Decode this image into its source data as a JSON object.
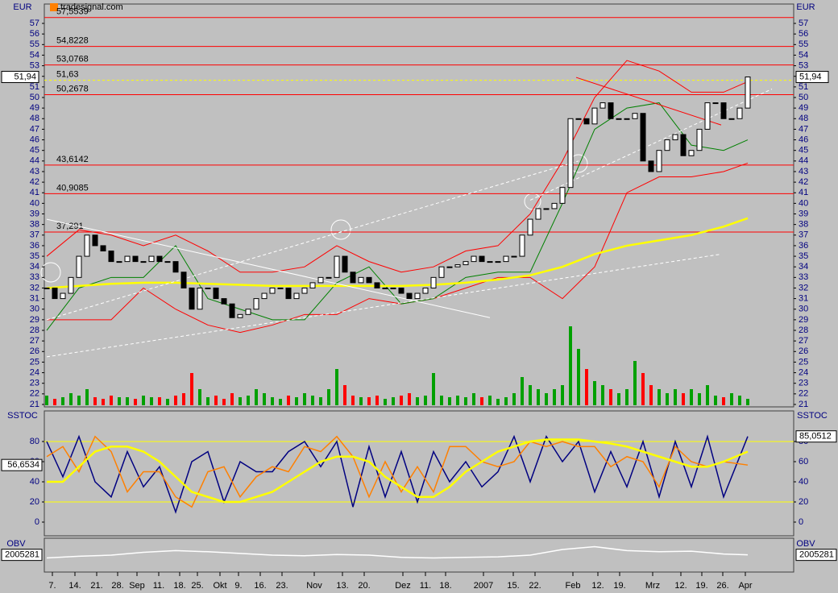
{
  "chart_data": [
    {
      "type": "candlestick",
      "title": "EUR",
      "source": "tradesignal.com",
      "xlim": [
        -0.3,
        92.7
      ],
      "ylim": [
        20.77,
        58.83
      ],
      "yticks": [
        21,
        22,
        23,
        24,
        25,
        26,
        27,
        28,
        29,
        30,
        31,
        32,
        33,
        34,
        35,
        36,
        37,
        38,
        39,
        40,
        41,
        42,
        43,
        44,
        45,
        46,
        47,
        48,
        49,
        50,
        51,
        52,
        53,
        54,
        55,
        56,
        57
      ],
      "xticks": [
        {
          "value": 0.7,
          "label": "7."
        },
        {
          "value": 3.5,
          "label": "14."
        },
        {
          "value": 6.2,
          "label": "21."
        },
        {
          "value": 8.8,
          "label": "28."
        },
        {
          "value": 11.2,
          "label": "Sep"
        },
        {
          "value": 13.9,
          "label": "11."
        },
        {
          "value": 16.5,
          "label": "18."
        },
        {
          "value": 18.7,
          "label": "25."
        },
        {
          "value": 21.5,
          "label": "Okt"
        },
        {
          "value": 23.8,
          "label": "9."
        },
        {
          "value": 26.5,
          "label": "16."
        },
        {
          "value": 29.2,
          "label": "23."
        },
        {
          "value": 33.2,
          "label": "Nov"
        },
        {
          "value": 36.7,
          "label": "13."
        },
        {
          "value": 39.4,
          "label": "20."
        },
        {
          "value": 44.2,
          "label": "Dez"
        },
        {
          "value": 47,
          "label": "11."
        },
        {
          "value": 49.5,
          "label": "18."
        },
        {
          "value": 54.2,
          "label": "2007"
        },
        {
          "value": 57.9,
          "label": "15."
        },
        {
          "value": 60.6,
          "label": "22."
        },
        {
          "value": 65.3,
          "label": "Feb"
        },
        {
          "value": 68.4,
          "label": "12."
        },
        {
          "value": 71.1,
          "label": "19."
        },
        {
          "value": 75.2,
          "label": "Mrz"
        },
        {
          "value": 78.7,
          "label": "12."
        },
        {
          "value": 81.3,
          "label": "19."
        },
        {
          "value": 83.9,
          "label": "26."
        },
        {
          "value": 86.7,
          "label": "Apr"
        }
      ],
      "closes": [
        32,
        31,
        31.5,
        33,
        35,
        37,
        36,
        35.5,
        34.5,
        34.5,
        35,
        34.5,
        34.5,
        35,
        34.5,
        34.5,
        33.5,
        32,
        30,
        32,
        32,
        31,
        30.5,
        29.2,
        29.5,
        30,
        31,
        31.5,
        32,
        32,
        31,
        31.5,
        32,
        32.5,
        33,
        33,
        35,
        33.5,
        32.5,
        33,
        32.5,
        32,
        32,
        32,
        31.5,
        31,
        31.5,
        32,
        33,
        34,
        34,
        34.2,
        34.5,
        35,
        34.5,
        34.5,
        34.5,
        35,
        35,
        37,
        38.5,
        39.5,
        39.5,
        40,
        41.5,
        48,
        48,
        47.5,
        49,
        49.5,
        48,
        48,
        48,
        48.5,
        44,
        43,
        45,
        46,
        46.5,
        44.5,
        45,
        47,
        49.5,
        49.5,
        48,
        48,
        49,
        51.94
      ],
      "volume": [
        12,
        8,
        10,
        15,
        12,
        20,
        10,
        8,
        12,
        10,
        10,
        8,
        12,
        10,
        10,
        8,
        12,
        15,
        40,
        20,
        10,
        12,
        8,
        15,
        10,
        12,
        20,
        15,
        10,
        8,
        12,
        10,
        15,
        12,
        10,
        20,
        45,
        25,
        12,
        10,
        10,
        12,
        8,
        10,
        12,
        15,
        10,
        12,
        40,
        12,
        10,
        12,
        10,
        15,
        10,
        12,
        8,
        10,
        15,
        35,
        25,
        20,
        15,
        20,
        25,
        98,
        70,
        45,
        30,
        25,
        20,
        15,
        20,
        55,
        40,
        25,
        20,
        15,
        20,
        15,
        20,
        15,
        25,
        12,
        10,
        15,
        12,
        8
      ],
      "volume_lim": [
        0,
        100
      ],
      "up_color": "#00a000",
      "down_color": "#ff0000",
      "levels": [
        {
          "value": 57.5539,
          "label": "57,5539",
          "color": "#ff0000"
        },
        {
          "value": 54.8228,
          "label": "54,8228",
          "color": "#ff0000"
        },
        {
          "value": 53.0768,
          "label": "53,0768",
          "color": "#ff0000"
        },
        {
          "value": 51.63,
          "label": "51,63",
          "color": "#ffff00",
          "dash": true
        },
        {
          "value": 50.2678,
          "label": "50,2678",
          "color": "#ff0000"
        },
        {
          "value": 43.6142,
          "label": "43,6142",
          "color": "#ff0000"
        },
        {
          "value": 40.9085,
          "label": "40,9085",
          "color": "#ff0000"
        },
        {
          "value": 37.291,
          "label": "37,291",
          "color": "#ff0000"
        }
      ],
      "overlay_x": [
        0,
        4,
        8,
        12,
        16,
        20,
        24,
        28,
        32,
        36,
        40,
        44,
        48,
        52,
        56,
        60,
        64,
        68,
        72,
        76,
        80,
        84,
        87
      ],
      "lines": [
        {
          "color": "#ff0000",
          "values": [
            35,
            37.5,
            37,
            36,
            37,
            35.5,
            33.5,
            33.5,
            34,
            36,
            34.5,
            33.5,
            34,
            35.5,
            36,
            39,
            44,
            50,
            53.5,
            52.5,
            50.5,
            50.5,
            51.5
          ]
        },
        {
          "color": "#ff0000",
          "values": [
            29,
            29,
            29,
            32,
            30,
            28.5,
            27.8,
            28.5,
            29.5,
            29.5,
            31,
            30.5,
            31,
            32,
            33,
            33,
            31,
            34,
            41,
            42.5,
            42.5,
            43,
            43.8
          ]
        },
        {
          "color": "#008000",
          "values": [
            28,
            32,
            33,
            33,
            36,
            31,
            30,
            29,
            29,
            32.5,
            34,
            30.5,
            31,
            33,
            33.5,
            33.5,
            40,
            47,
            49,
            49.5,
            45.5,
            45,
            46
          ]
        },
        {
          "color": "#ffff00",
          "values": [
            32,
            32.2,
            32.4,
            32.5,
            32.5,
            32.4,
            32.3,
            32.2,
            32.2,
            32.2,
            32.2,
            32.2,
            32.3,
            32.5,
            32.8,
            33.2,
            34,
            35.2,
            36,
            36.5,
            37,
            37.8,
            38.6
          ]
        }
      ],
      "trendlines": [
        {
          "x": [
            0,
            55
          ],
          "y": [
            38.5,
            29.2
          ],
          "color": "#ffffff"
        },
        {
          "x": [
            0,
            83.7
          ],
          "y": [
            25.5,
            35.2
          ],
          "color": "#ffffff",
          "dash": true
        },
        {
          "x": [
            0,
            66
          ],
          "y": [
            29,
            44
          ],
          "color": "#ffffff",
          "dash": true
        },
        {
          "x": [
            60,
            90
          ],
          "y": [
            40.3,
            50.8
          ],
          "color": "#ffffff",
          "dash": true
        },
        {
          "x": [
            65.7,
            83.7
          ],
          "y": [
            51.9,
            47.4
          ],
          "color": "#ff0000"
        }
      ],
      "current": {
        "value": 51.94,
        "label": "51,94"
      }
    },
    {
      "type": "line",
      "title": "SSTOC",
      "x": [
        0,
        2,
        4,
        6,
        8,
        10,
        12,
        14,
        16,
        18,
        20,
        22,
        24,
        26,
        28,
        30,
        32,
        34,
        36,
        38,
        40,
        42,
        44,
        46,
        48,
        50,
        52,
        54,
        56,
        58,
        60,
        62,
        64,
        66,
        68,
        70,
        72,
        74,
        76,
        78,
        80,
        82,
        84,
        87
      ],
      "ylim": [
        -13.6,
        110.4
      ],
      "yticks": [
        0,
        20,
        40,
        60,
        80
      ],
      "levels": [
        {
          "value": 20,
          "color": "#ffff00"
        },
        {
          "value": 80,
          "color": "#ffff00"
        }
      ],
      "series": [
        {
          "color": "#000080",
          "values": [
            80,
            45,
            85,
            40,
            25,
            70,
            35,
            55,
            10,
            60,
            70,
            20,
            60,
            50,
            50,
            70,
            80,
            55,
            80,
            15,
            75,
            25,
            70,
            20,
            70,
            40,
            60,
            35,
            50,
            85,
            40,
            85,
            60,
            80,
            30,
            70,
            35,
            80,
            25,
            80,
            35,
            85,
            25,
            85.05
          ]
        },
        {
          "color": "#ff8000",
          "values": [
            65,
            75,
            50,
            85,
            70,
            30,
            50,
            50,
            25,
            15,
            50,
            55,
            25,
            45,
            55,
            50,
            75,
            70,
            85,
            65,
            25,
            60,
            30,
            55,
            30,
            75,
            75,
            60,
            55,
            60,
            80,
            75,
            80,
            75,
            75,
            55,
            65,
            60,
            35,
            75,
            60,
            55,
            60,
            56.65
          ]
        },
        {
          "color": "#ffff00",
          "values": [
            40,
            40,
            55,
            70,
            75,
            75,
            70,
            60,
            45,
            30,
            25,
            20,
            20,
            25,
            30,
            40,
            50,
            60,
            65,
            65,
            60,
            45,
            35,
            25,
            25,
            35,
            50,
            60,
            70,
            75,
            80,
            82,
            82,
            82,
            80,
            78,
            75,
            70,
            65,
            60,
            55,
            55,
            60,
            70
          ]
        }
      ],
      "current": [
        {
          "value": 56.6534,
          "label": "56,6534",
          "side": "left"
        },
        {
          "value": 85.0512,
          "label": "85,0512",
          "side": "right"
        }
      ]
    },
    {
      "type": "line",
      "title": "OBV",
      "x": [
        0,
        4,
        8,
        12,
        16,
        20,
        24,
        28,
        32,
        36,
        40,
        44,
        48,
        52,
        56,
        60,
        64,
        68,
        72,
        76,
        80,
        84,
        87
      ],
      "ylim": [
        1700000,
        2300000
      ],
      "series": [
        {
          "color": "#ffffff",
          "values": [
            1950000,
            1980000,
            2000000,
            2050000,
            2080000,
            2060000,
            2030000,
            2000000,
            1990000,
            2010000,
            2000000,
            1960000,
            1950000,
            1960000,
            1970000,
            2000000,
            2100000,
            2150000,
            2080000,
            2060000,
            2070000,
            2020000,
            2005281
          ]
        }
      ]
    }
  ]
}
